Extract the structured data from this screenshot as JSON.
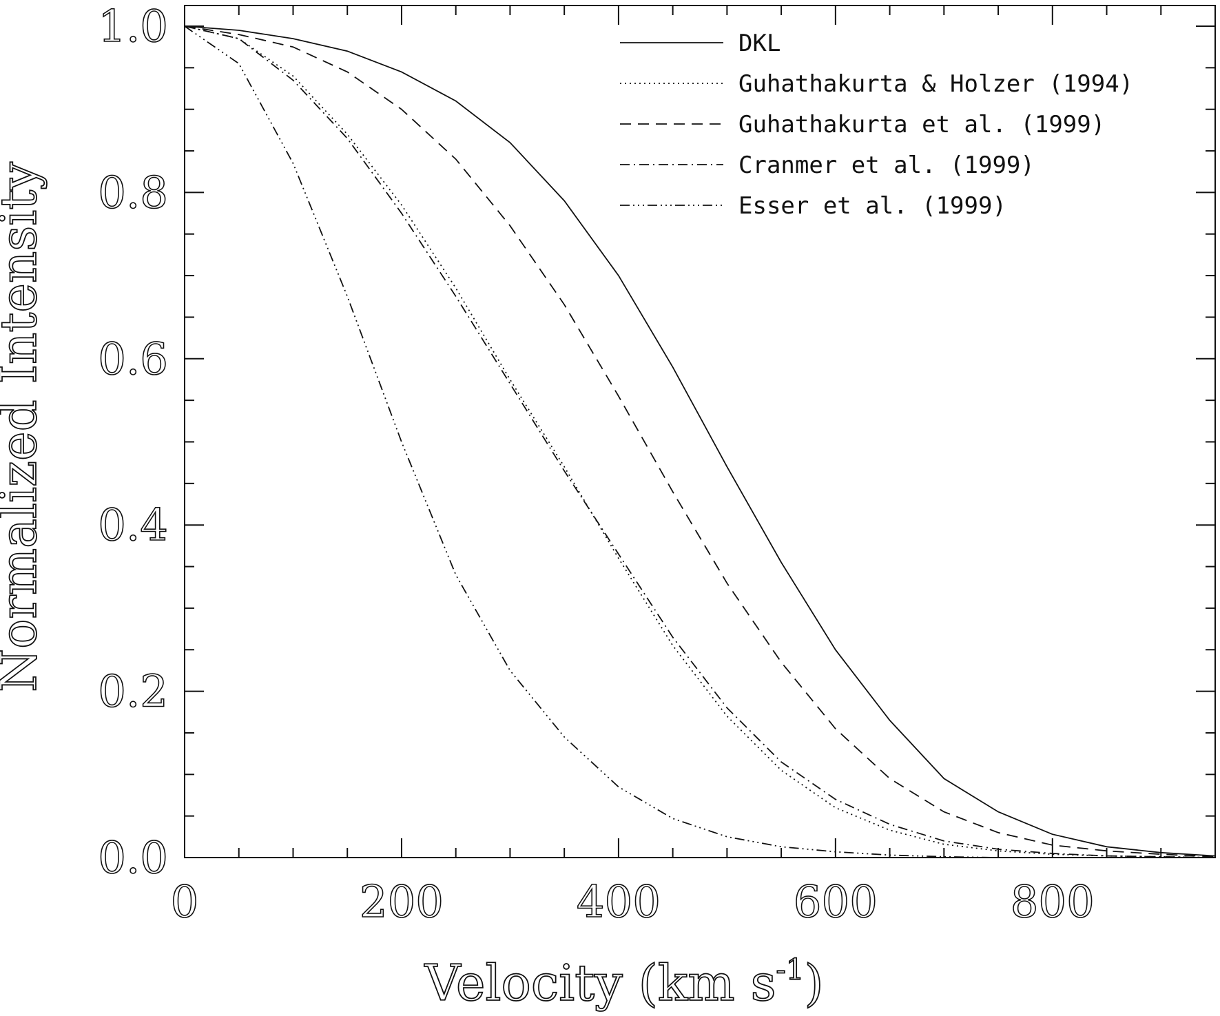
{
  "chart_data": {
    "type": "line",
    "xlabel": "Velocity (km s",
    "xlabel_superscript": "-1",
    "xlabel_close": ")",
    "ylabel": "Normalized Intensity",
    "xlim": [
      0,
      950
    ],
    "ylim": [
      0,
      1.0
    ],
    "x_ticks": [
      "0",
      "200",
      "400",
      "600",
      "800"
    ],
    "y_ticks": [
      "0.0",
      "0.2",
      "0.4",
      "0.6",
      "0.8",
      "1.0"
    ],
    "legend_position": "top-right",
    "grid": false,
    "x": [
      0,
      50,
      100,
      150,
      200,
      250,
      300,
      350,
      400,
      450,
      500,
      550,
      600,
      650,
      700,
      750,
      800,
      850,
      900,
      950
    ],
    "series": [
      {
        "name": "DKL",
        "dash": "solid",
        "values": [
          1.0,
          0.995,
          0.985,
          0.97,
          0.945,
          0.91,
          0.86,
          0.79,
          0.7,
          0.59,
          0.47,
          0.355,
          0.25,
          0.165,
          0.095,
          0.055,
          0.028,
          0.013,
          0.006,
          0.002
        ]
      },
      {
        "name": "Guhathakurta & Holzer (1994)",
        "dash": "dotted",
        "values": [
          1.0,
          0.985,
          0.94,
          0.87,
          0.785,
          0.685,
          0.575,
          0.47,
          0.36,
          0.255,
          0.17,
          0.105,
          0.06,
          0.033,
          0.016,
          0.008,
          0.004,
          0.002,
          0.001,
          0.0
        ]
      },
      {
        "name": "Guhathakurta et al. (1999)",
        "dash": "dashed",
        "values": [
          1.0,
          0.99,
          0.975,
          0.945,
          0.9,
          0.84,
          0.76,
          0.665,
          0.555,
          0.44,
          0.33,
          0.235,
          0.155,
          0.095,
          0.055,
          0.03,
          0.015,
          0.008,
          0.004,
          0.001
        ]
      },
      {
        "name": "Cranmer et al. (1999)",
        "dash": "dashdot",
        "values": [
          1.0,
          0.985,
          0.935,
          0.865,
          0.775,
          0.675,
          0.57,
          0.465,
          0.365,
          0.265,
          0.18,
          0.115,
          0.07,
          0.04,
          0.02,
          0.01,
          0.005,
          0.002,
          0.001,
          0.0
        ]
      },
      {
        "name": "Esser et al. (1999)",
        "dash": "dashdotdotdot",
        "values": [
          1.0,
          0.955,
          0.835,
          0.675,
          0.5,
          0.34,
          0.225,
          0.145,
          0.085,
          0.047,
          0.025,
          0.013,
          0.007,
          0.003,
          0.001,
          0.0,
          0.0,
          0.0,
          0.0,
          0.0
        ]
      }
    ]
  }
}
